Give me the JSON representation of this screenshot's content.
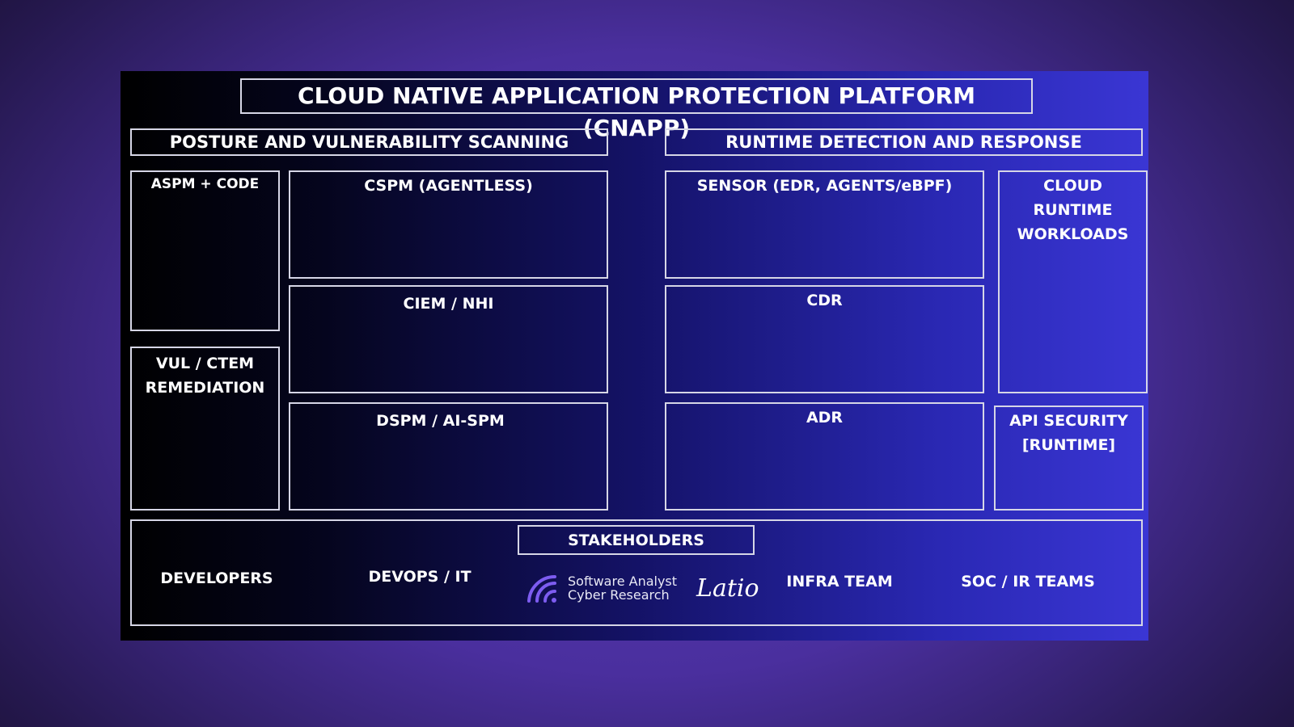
{
  "title": "CLOUD NATIVE APPLICATION PROTECTION PLATFORM (CNAPP)",
  "posture": {
    "header": "POSTURE AND VULNERABILITY SCANNING",
    "aspm": "ASPM + CODE",
    "vul": [
      "VUL / CTEM",
      "REMEDIATION"
    ],
    "cspm": "CSPM (AGENTLESS)",
    "ciem": "CIEM / NHI",
    "dspm": "DSPM / AI-SPM"
  },
  "runtime": {
    "header": "RUNTIME DETECTION AND RESPONSE",
    "sensor": "SENSOR (EDR, AGENTS/eBPF)",
    "cdr": "CDR",
    "adr": "ADR",
    "cloud": [
      "CLOUD",
      "RUNTIME",
      "WORKLOADS"
    ],
    "api": [
      "API SECURITY",
      "[RUNTIME]"
    ]
  },
  "stakeholders": {
    "header": "STAKEHOLDERS",
    "items": [
      "DEVELOPERS",
      "DEVOPS / IT",
      "INFRA TEAM",
      "SOC / IR TEAMS"
    ]
  },
  "logos": {
    "software_analyst": [
      "Software Analyst",
      "Cyber Research"
    ],
    "latio": "Latio",
    "icon": "wifi-signal-icon"
  },
  "colors": {
    "accent": "#3a36d4",
    "border": "#d6d6e6"
  }
}
